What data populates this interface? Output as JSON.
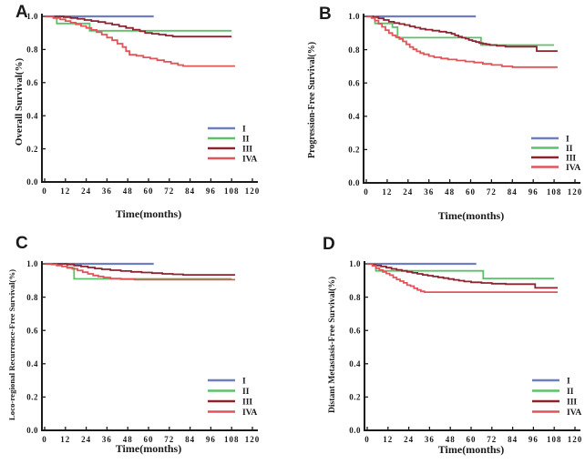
{
  "figure_title": "Kaplan-Meier survival curves by stage (I, II, III, IVA)",
  "colors": {
    "stage_I": "#6e7fc0",
    "stage_II": "#5cc168",
    "stage_III": "#8e2330",
    "stage_IVA": "#e0545a",
    "axis": "#1a1a1a",
    "background": "#ffffff"
  },
  "legend": {
    "entries": [
      "I",
      "II",
      "III",
      "IVA"
    ],
    "position": "lower right"
  },
  "chart_data": [
    {
      "type": "line",
      "subtype": "kaplan-meier-step",
      "panel_label": "A",
      "title": "",
      "xlabel": "Time(months)",
      "ylabel": "Overall Survival(%)",
      "xlim": [
        0,
        120
      ],
      "ylim": [
        0.0,
        1.0
      ],
      "x_ticks": [
        0,
        12,
        24,
        36,
        48,
        60,
        72,
        84,
        96,
        108,
        120
      ],
      "y_ticks": [
        "0.0",
        "0.2",
        "0.4",
        "0.6",
        "0.8",
        "1.0"
      ],
      "grid": false,
      "legend_position": "lower right",
      "series": [
        {
          "name": "I",
          "color": "#6e7fc0",
          "points": [
            [
              0,
              1.0
            ],
            [
              63,
              1.0
            ]
          ]
        },
        {
          "name": "II",
          "color": "#5cc168",
          "points": [
            [
              0,
              1.0
            ],
            [
              7,
              0.957
            ],
            [
              26,
              0.913
            ],
            [
              108,
              0.913
            ]
          ]
        },
        {
          "name": "III",
          "color": "#8e2330",
          "points": [
            [
              0,
              1.0
            ],
            [
              11,
              0.995
            ],
            [
              15,
              0.99
            ],
            [
              19,
              0.985
            ],
            [
              23,
              0.978
            ],
            [
              27,
              0.972
            ],
            [
              31,
              0.966
            ],
            [
              35,
              0.958
            ],
            [
              39,
              0.95
            ],
            [
              43,
              0.94
            ],
            [
              47,
              0.93
            ],
            [
              51,
              0.92
            ],
            [
              55,
              0.91
            ],
            [
              58,
              0.9
            ],
            [
              62,
              0.895
            ],
            [
              66,
              0.89
            ],
            [
              70,
              0.884
            ],
            [
              74,
              0.878
            ],
            [
              108,
              0.878
            ]
          ]
        },
        {
          "name": "IVA",
          "color": "#e0545a",
          "points": [
            [
              0,
              1.0
            ],
            [
              5,
              0.99
            ],
            [
              9,
              0.982
            ],
            [
              12,
              0.972
            ],
            [
              15,
              0.962
            ],
            [
              18,
              0.952
            ],
            [
              21,
              0.942
            ],
            [
              24,
              0.93
            ],
            [
              27,
              0.918
            ],
            [
              30,
              0.905
            ],
            [
              33,
              0.89
            ],
            [
              36,
              0.872
            ],
            [
              39,
              0.856
            ],
            [
              42,
              0.835
            ],
            [
              45,
              0.815
            ],
            [
              47,
              0.79
            ],
            [
              49,
              0.768
            ],
            [
              53,
              0.762
            ],
            [
              57,
              0.752
            ],
            [
              61,
              0.745
            ],
            [
              65,
              0.735
            ],
            [
              69,
              0.726
            ],
            [
              73,
              0.716
            ],
            [
              77,
              0.706
            ],
            [
              80,
              0.7
            ],
            [
              110,
              0.7
            ]
          ]
        }
      ]
    },
    {
      "type": "line",
      "subtype": "kaplan-meier-step",
      "panel_label": "B",
      "title": "",
      "xlabel": "Time(months)",
      "ylabel": "Progression-Free Survival(%)",
      "xlim": [
        0,
        120
      ],
      "ylim": [
        0.0,
        1.0
      ],
      "x_ticks": [
        0,
        12,
        24,
        36,
        48,
        60,
        72,
        84,
        96,
        108,
        120
      ],
      "y_ticks": [
        "0.0",
        "0.2",
        "0.4",
        "0.6",
        "0.8",
        "1.0"
      ],
      "grid": false,
      "legend_position": "lower right",
      "series": [
        {
          "name": "I",
          "color": "#6e7fc0",
          "points": [
            [
              0,
              1.0
            ],
            [
              63,
              1.0
            ]
          ]
        },
        {
          "name": "II",
          "color": "#5cc168",
          "points": [
            [
              0,
              1.0
            ],
            [
              5,
              0.958
            ],
            [
              15,
              0.935
            ],
            [
              18,
              0.872
            ],
            [
              66,
              0.828
            ],
            [
              108,
              0.828
            ]
          ]
        },
        {
          "name": "III",
          "color": "#8e2330",
          "points": [
            [
              0,
              1.0
            ],
            [
              4,
              0.995
            ],
            [
              7,
              0.988
            ],
            [
              10,
              0.978
            ],
            [
              13,
              0.968
            ],
            [
              16,
              0.96
            ],
            [
              19,
              0.954
            ],
            [
              22,
              0.948
            ],
            [
              25,
              0.94
            ],
            [
              28,
              0.932
            ],
            [
              31,
              0.925
            ],
            [
              34,
              0.92
            ],
            [
              38,
              0.914
            ],
            [
              42,
              0.908
            ],
            [
              46,
              0.902
            ],
            [
              49,
              0.895
            ],
            [
              51,
              0.886
            ],
            [
              53,
              0.878
            ],
            [
              55,
              0.872
            ],
            [
              57,
              0.866
            ],
            [
              59,
              0.858
            ],
            [
              61,
              0.852
            ],
            [
              63,
              0.846
            ],
            [
              65,
              0.84
            ],
            [
              67,
              0.836
            ],
            [
              69,
              0.832
            ],
            [
              71,
              0.828
            ],
            [
              75,
              0.823
            ],
            [
              80,
              0.818
            ],
            [
              98,
              0.792
            ],
            [
              110,
              0.792
            ]
          ]
        },
        {
          "name": "IVA",
          "color": "#e0545a",
          "points": [
            [
              0,
              1.0
            ],
            [
              3,
              0.99
            ],
            [
              5,
              0.975
            ],
            [
              7,
              0.956
            ],
            [
              9,
              0.937
            ],
            [
              11,
              0.917
            ],
            [
              13,
              0.9
            ],
            [
              15,
              0.886
            ],
            [
              17,
              0.875
            ],
            [
              19,
              0.864
            ],
            [
              21,
              0.85
            ],
            [
              23,
              0.832
            ],
            [
              25,
              0.816
            ],
            [
              27,
              0.802
            ],
            [
              29,
              0.79
            ],
            [
              31,
              0.78
            ],
            [
              33,
              0.772
            ],
            [
              36,
              0.762
            ],
            [
              39,
              0.754
            ],
            [
              43,
              0.747
            ],
            [
              47,
              0.741
            ],
            [
              52,
              0.735
            ],
            [
              57,
              0.729
            ],
            [
              62,
              0.723
            ],
            [
              67,
              0.715
            ],
            [
              72,
              0.708
            ],
            [
              78,
              0.7
            ],
            [
              84,
              0.695
            ],
            [
              110,
              0.695
            ]
          ]
        }
      ]
    },
    {
      "type": "line",
      "subtype": "kaplan-meier-step",
      "panel_label": "C",
      "title": "",
      "xlabel": "Time(months)",
      "ylabel": "Loco-regional Recurrence-Free Survival(%)",
      "xlim": [
        0,
        120
      ],
      "ylim": [
        0.0,
        1.0
      ],
      "x_ticks": [
        0,
        12,
        24,
        36,
        48,
        60,
        72,
        84,
        96,
        108,
        120
      ],
      "y_ticks": [
        "0.0",
        "0.2",
        "0.4",
        "0.6",
        "0.8",
        "1.0"
      ],
      "grid": false,
      "legend_position": "lower right",
      "series": [
        {
          "name": "I",
          "color": "#6e7fc0",
          "points": [
            [
              0,
              1.0
            ],
            [
              63,
              1.0
            ]
          ]
        },
        {
          "name": "II",
          "color": "#5cc168",
          "points": [
            [
              0,
              1.0
            ],
            [
              13,
              0.975
            ],
            [
              17,
              0.91
            ],
            [
              108,
              0.91
            ]
          ]
        },
        {
          "name": "III",
          "color": "#8e2330",
          "points": [
            [
              0,
              1.0
            ],
            [
              13,
              0.996
            ],
            [
              17,
              0.99
            ],
            [
              21,
              0.984
            ],
            [
              25,
              0.978
            ],
            [
              29,
              0.972
            ],
            [
              33,
              0.967
            ],
            [
              38,
              0.962
            ],
            [
              44,
              0.957
            ],
            [
              50,
              0.952
            ],
            [
              56,
              0.948
            ],
            [
              62,
              0.944
            ],
            [
              68,
              0.94
            ],
            [
              74,
              0.937
            ],
            [
              80,
              0.934
            ],
            [
              110,
              0.934
            ]
          ]
        },
        {
          "name": "IVA",
          "color": "#e0545a",
          "points": [
            [
              0,
              1.0
            ],
            [
              4,
              0.996
            ],
            [
              7,
              0.99
            ],
            [
              10,
              0.984
            ],
            [
              13,
              0.978
            ],
            [
              16,
              0.97
            ],
            [
              19,
              0.96
            ],
            [
              22,
              0.95
            ],
            [
              25,
              0.94
            ],
            [
              28,
              0.93
            ],
            [
              31,
              0.924
            ],
            [
              34,
              0.918
            ],
            [
              38,
              0.912
            ],
            [
              44,
              0.908
            ],
            [
              52,
              0.905
            ],
            [
              110,
              0.905
            ]
          ]
        }
      ]
    },
    {
      "type": "line",
      "subtype": "kaplan-meier-step",
      "panel_label": "D",
      "title": "",
      "xlabel": "Time(months)",
      "ylabel": "Distant Metastasis-Free Survival(%)",
      "xlim": [
        0,
        120
      ],
      "ylim": [
        0.0,
        1.0
      ],
      "x_ticks": [
        0,
        12,
        24,
        36,
        48,
        60,
        72,
        84,
        96,
        108,
        120
      ],
      "y_ticks": [
        "0.0",
        "0.2",
        "0.4",
        "0.6",
        "0.8",
        "1.0"
      ],
      "grid": false,
      "legend_position": "lower right",
      "series": [
        {
          "name": "I",
          "color": "#6e7fc0",
          "points": [
            [
              0,
              1.0
            ],
            [
              63,
              1.0
            ]
          ]
        },
        {
          "name": "II",
          "color": "#5cc168",
          "points": [
            [
              0,
              1.0
            ],
            [
              5,
              0.958
            ],
            [
              67,
              0.912
            ],
            [
              108,
              0.912
            ]
          ]
        },
        {
          "name": "III",
          "color": "#8e2330",
          "points": [
            [
              0,
              1.0
            ],
            [
              3,
              0.996
            ],
            [
              5,
              0.99
            ],
            [
              8,
              0.984
            ],
            [
              11,
              0.977
            ],
            [
              14,
              0.97
            ],
            [
              17,
              0.964
            ],
            [
              20,
              0.958
            ],
            [
              23,
              0.952
            ],
            [
              26,
              0.946
            ],
            [
              29,
              0.94
            ],
            [
              32,
              0.934
            ],
            [
              35,
              0.929
            ],
            [
              38,
              0.924
            ],
            [
              41,
              0.919
            ],
            [
              44,
              0.914
            ],
            [
              47,
              0.909
            ],
            [
              50,
              0.904
            ],
            [
              53,
              0.899
            ],
            [
              56,
              0.894
            ],
            [
              60,
              0.889
            ],
            [
              66,
              0.885
            ],
            [
              72,
              0.881
            ],
            [
              80,
              0.878
            ],
            [
              97,
              0.856
            ],
            [
              110,
              0.856
            ]
          ]
        },
        {
          "name": "IVA",
          "color": "#e0545a",
          "points": [
            [
              0,
              1.0
            ],
            [
              3,
              0.988
            ],
            [
              5,
              0.974
            ],
            [
              7,
              0.963
            ],
            [
              9,
              0.952
            ],
            [
              11,
              0.942
            ],
            [
              13,
              0.932
            ],
            [
              15,
              0.918
            ],
            [
              17,
              0.906
            ],
            [
              19,
              0.896
            ],
            [
              21,
              0.886
            ],
            [
              23,
              0.872
            ],
            [
              25,
              0.866
            ],
            [
              27,
              0.853
            ],
            [
              29,
              0.843
            ],
            [
              31,
              0.835
            ],
            [
              33,
              0.83
            ],
            [
              110,
              0.83
            ]
          ]
        }
      ]
    }
  ]
}
